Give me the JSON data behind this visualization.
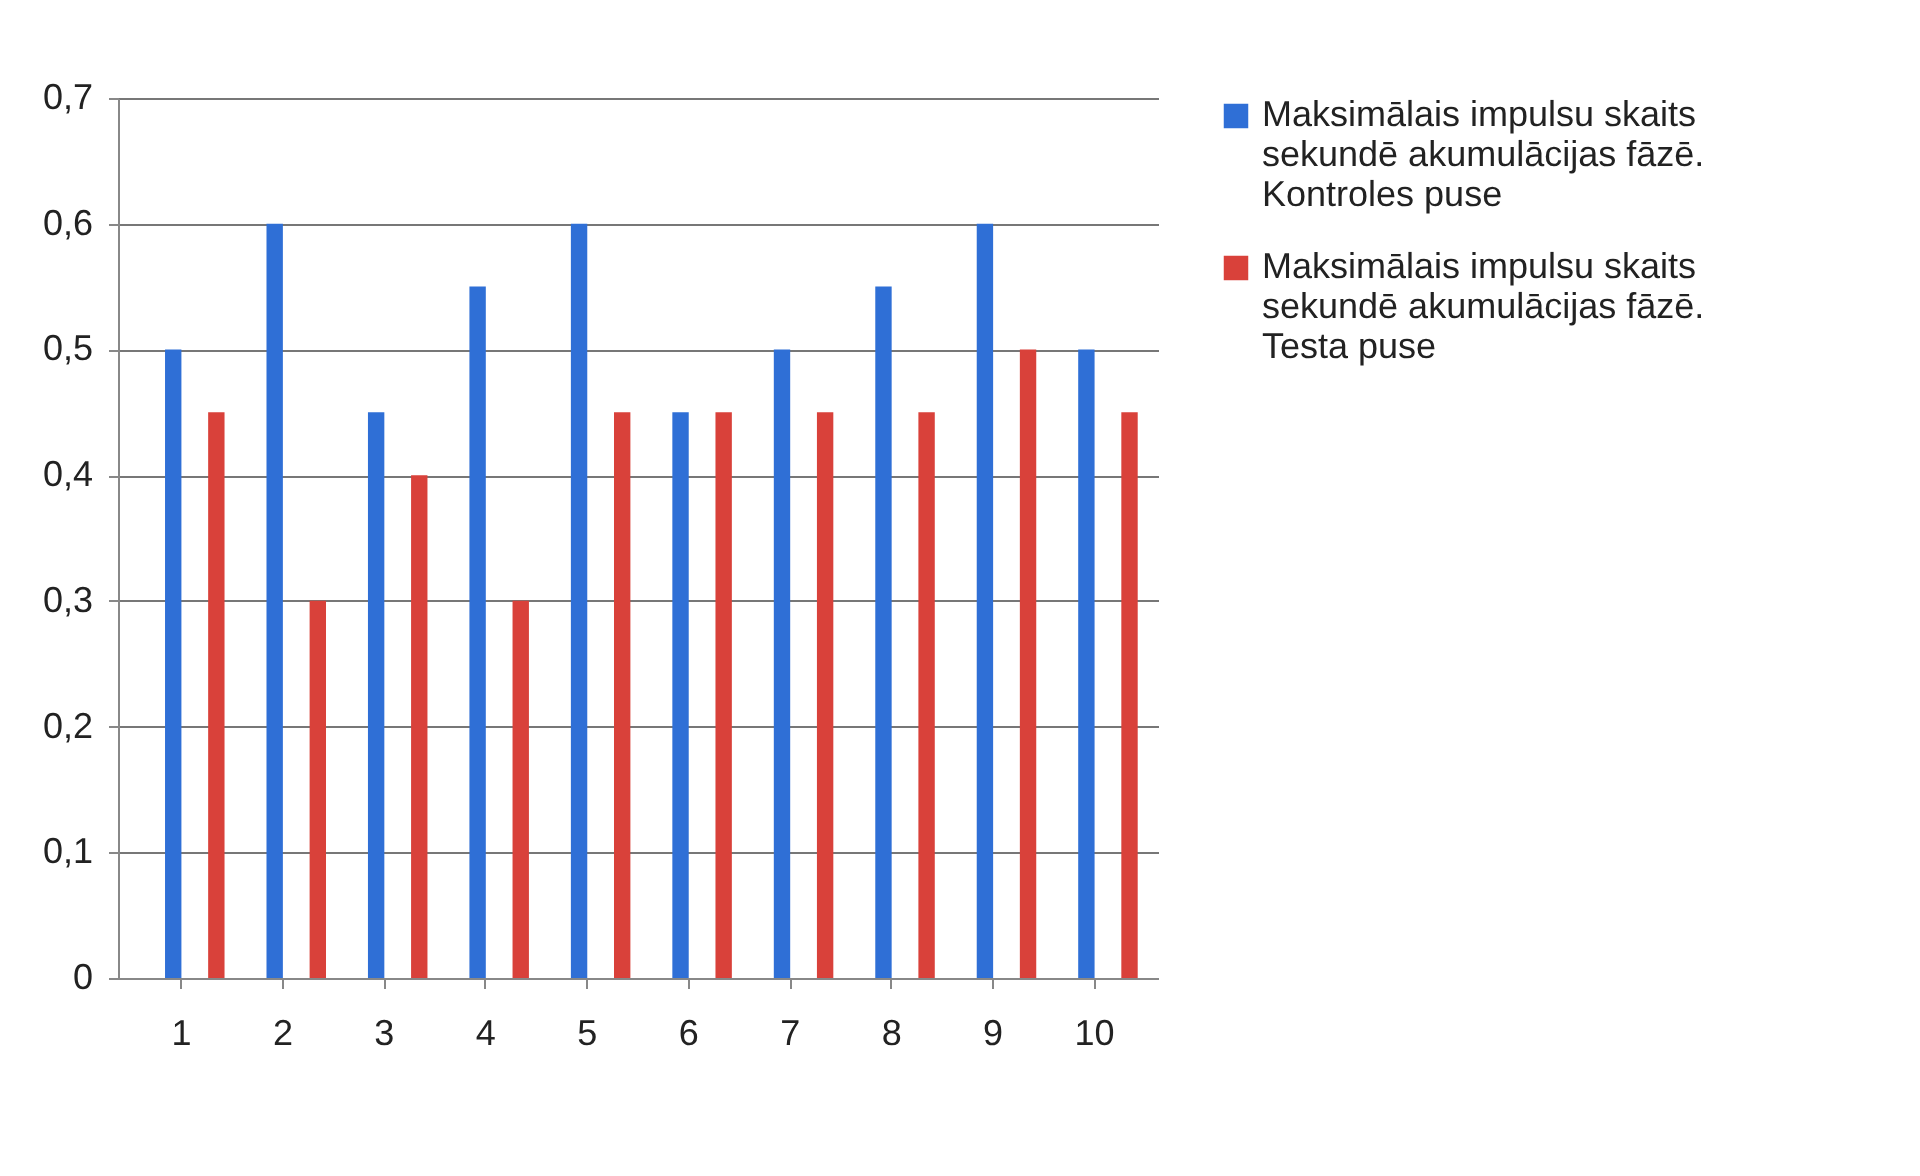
{
  "chart_data": {
    "type": "bar",
    "categories": [
      "1",
      "2",
      "3",
      "4",
      "5",
      "6",
      "7",
      "8",
      "9",
      "10"
    ],
    "series": [
      {
        "name": "Maksimālais impulsu skaits sekundē akumulācijas fāzē. Kontroles puse",
        "color": "#2f6fd6",
        "values": [
          0.5,
          0.6,
          0.45,
          0.55,
          0.6,
          0.45,
          0.5,
          0.55,
          0.6,
          0.5
        ]
      },
      {
        "name": "Maksimālais impulsu skaits sekundē akumulācijas fāzē. Testa puse",
        "color": "#d9413a",
        "values": [
          0.45,
          0.3,
          0.4,
          0.3,
          0.45,
          0.45,
          0.45,
          0.45,
          0.5,
          0.45
        ]
      }
    ],
    "ylim": [
      0,
      0.7
    ],
    "yticks": [
      {
        "value": 0,
        "label": "0"
      },
      {
        "value": 0.1,
        "label": "0,1"
      },
      {
        "value": 0.2,
        "label": "0,2"
      },
      {
        "value": 0.3,
        "label": "0,3"
      },
      {
        "value": 0.4,
        "label": "0,4"
      },
      {
        "value": 0.5,
        "label": "0,5"
      },
      {
        "value": 0.6,
        "label": "0,6"
      },
      {
        "value": 0.7,
        "label": "0,7"
      }
    ],
    "grid": "y",
    "legend": "right"
  }
}
